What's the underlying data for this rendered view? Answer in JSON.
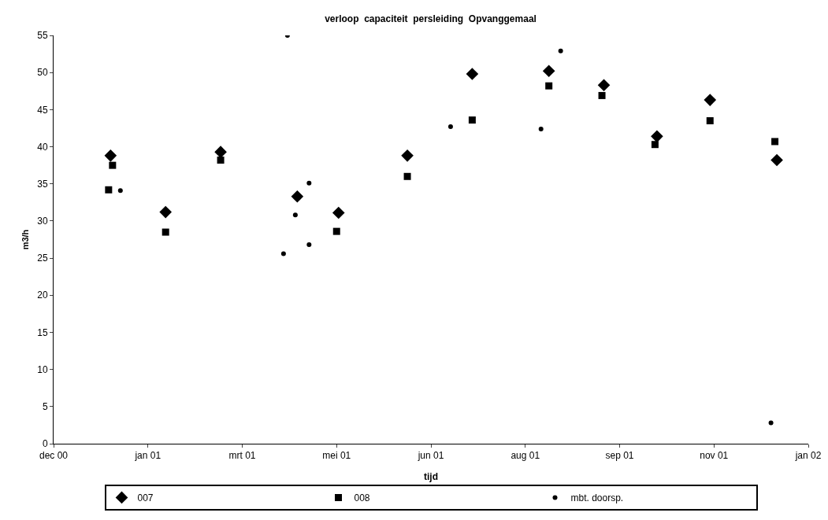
{
  "chart_data": {
    "type": "scatter",
    "title": "verloop  capaciteit  persleiding  Opvanggemaal",
    "xlabel": "tijd",
    "ylabel": "m3/h",
    "xlim": [
      "2000-12-13",
      "2002-01-01"
    ],
    "xticks": [
      {
        "value": "2000-12-13",
        "label": "dec 00"
      },
      {
        "value": "2001-01-30",
        "label": "jan 01"
      },
      {
        "value": "2001-03-19",
        "label": "mrt 01"
      },
      {
        "value": "2001-05-06",
        "label": "mei 01"
      },
      {
        "value": "2001-06-23",
        "label": "jun 01"
      },
      {
        "value": "2001-08-10",
        "label": "aug 01"
      },
      {
        "value": "2001-09-27",
        "label": "sep 01"
      },
      {
        "value": "2001-11-14",
        "label": "nov 01"
      },
      {
        "value": "2002-01-01",
        "label": "jan 02"
      }
    ],
    "ylim": [
      0,
      55
    ],
    "yticks": [
      0,
      5,
      10,
      15,
      20,
      25,
      30,
      35,
      40,
      45,
      50,
      55
    ],
    "grid": false,
    "legend": "bottom",
    "series": [
      {
        "name": "007",
        "color": "#000000",
        "marker": "diamond",
        "x": [
          "2001-01-11",
          "2001-02-08",
          "2001-03-08",
          "2001-04-16",
          "2001-05-07",
          "2001-06-11",
          "2001-07-14",
          "2001-08-22",
          "2001-09-19",
          "2001-10-16",
          "2001-11-12",
          "2001-12-16"
        ],
        "values": [
          38.8,
          31.2,
          39.3,
          33.3,
          31.1,
          38.8,
          49.8,
          50.2,
          48.3,
          41.4,
          46.3,
          38.2
        ]
      },
      {
        "name": "008",
        "color": "#000000",
        "marker": "square",
        "x": [
          "2001-01-12",
          "2001-01-10",
          "2001-02-08",
          "2001-03-08",
          "2001-05-06",
          "2001-06-11",
          "2001-07-14",
          "2001-08-22",
          "2001-09-18",
          "2001-10-15",
          "2001-11-12",
          "2001-12-15"
        ],
        "values": [
          37.5,
          34.2,
          28.5,
          38.2,
          28.6,
          36.0,
          43.6,
          48.2,
          46.9,
          40.3,
          43.5,
          40.7
        ]
      },
      {
        "name": "mbt. doorsp.",
        "color": "#000000",
        "marker": "circle",
        "x": [
          "2001-01-16",
          "2001-04-09",
          "2001-04-11",
          "2001-04-15",
          "2001-04-22",
          "2001-04-22",
          "2001-07-03",
          "2001-08-18",
          "2001-08-28",
          "2001-12-13"
        ],
        "values": [
          34.1,
          25.6,
          55.0,
          30.8,
          35.1,
          26.8,
          42.7,
          42.4,
          52.9,
          2.8
        ]
      }
    ]
  }
}
